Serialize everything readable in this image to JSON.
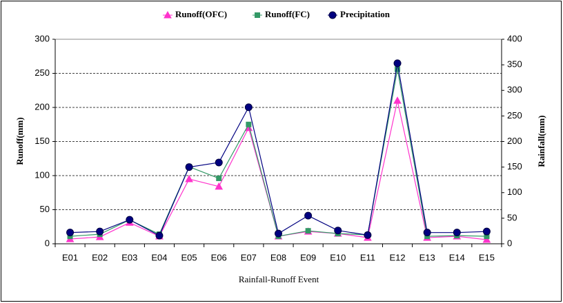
{
  "chart_data": {
    "type": "line",
    "x_label": "Rainfall-Runoff Event",
    "y_label": "Runoff(mm)",
    "y2_label": "Rainfall(mm)",
    "categories": [
      "E01",
      "E02",
      "E03",
      "E04",
      "E05",
      "E06",
      "E07",
      "E08",
      "E09",
      "E10",
      "E11",
      "E12",
      "E13",
      "E14",
      "E15"
    ],
    "series": [
      {
        "name": "Runoff(OFC)",
        "color": "#ff33cc",
        "marker": "triangle",
        "values": [
          7,
          10,
          31,
          11,
          95,
          84,
          170,
          11,
          18,
          15,
          9,
          210,
          9,
          11,
          6
        ]
      },
      {
        "name": "Runoff(FC)",
        "color": "#339966",
        "marker": "square",
        "values": [
          11,
          14,
          35,
          14,
          113,
          96,
          175,
          11,
          19,
          15,
          13,
          256,
          11,
          12,
          11
        ]
      },
      {
        "name": "Precipitation",
        "color": "#000080",
        "marker": "circle",
        "axis": "y2",
        "values": [
          22,
          24,
          47,
          16,
          150,
          159,
          267,
          20,
          55,
          26,
          17,
          353,
          22,
          22,
          24
        ]
      }
    ],
    "ylim": [
      0,
      300
    ],
    "yticks": [
      0,
      50,
      100,
      150,
      200,
      250,
      300
    ],
    "y2lim": [
      0,
      400
    ],
    "y2ticks": [
      0,
      50,
      100,
      150,
      200,
      250,
      300,
      350,
      400
    ],
    "grid": true,
    "legend": "top"
  }
}
